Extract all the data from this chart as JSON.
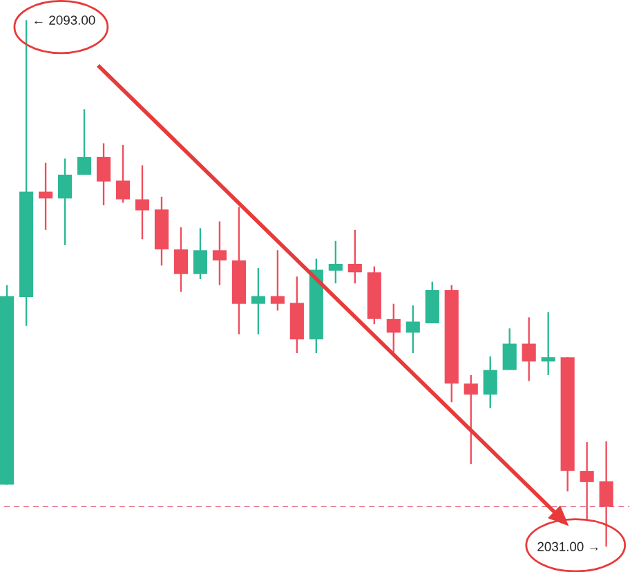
{
  "chart_data": {
    "type": "candlestick",
    "categories": [
      null,
      null,
      null,
      null,
      null,
      null,
      null,
      null,
      null,
      null,
      null,
      null,
      null,
      null,
      null,
      null,
      null,
      null,
      null,
      null,
      null,
      null,
      null,
      null,
      null,
      null,
      null,
      null,
      null,
      null,
      null,
      null
    ],
    "ohlc": [
      [
        2038.3,
        2061.8,
        2038.3,
        2060.5
      ],
      [
        2060.4,
        2093,
        2057.0,
        2072.8
      ],
      [
        2072.8,
        2076.2,
        2068.3,
        2072.0
      ],
      [
        2072.0,
        2076.7,
        2066.5,
        2074.8
      ],
      [
        2074.8,
        2082.5,
        2074.8,
        2076.9
      ],
      [
        2076.9,
        2078.5,
        2071.2,
        2074.0
      ],
      [
        2074.1,
        2078.3,
        2071.5,
        2071.9
      ],
      [
        2071.9,
        2075.9,
        2067.2,
        2070.6
      ],
      [
        2070.7,
        2072.2,
        2064.1,
        2066.0
      ],
      [
        2066.0,
        2068.6,
        2061.0,
        2063.1
      ],
      [
        2063.1,
        2068.5,
        2062.5,
        2065.9
      ],
      [
        2065.9,
        2069.3,
        2061.8,
        2064.7
      ],
      [
        2064.7,
        2071.0,
        2056.0,
        2059.6
      ],
      [
        2059.6,
        2063.8,
        2056.0,
        2060.5
      ],
      [
        2060.5,
        2065.9,
        2058.8,
        2059.6
      ],
      [
        2059.7,
        2062.8,
        2053.8,
        2055.4
      ],
      [
        2055.4,
        2064.9,
        2053.8,
        2063.6
      ],
      [
        2063.5,
        2067.0,
        2062.0,
        2064.3
      ],
      [
        2064.3,
        2068.3,
        2062.0,
        2063.3
      ],
      [
        2063.3,
        2064.0,
        2057.2,
        2057.8
      ],
      [
        2057.8,
        2059.6,
        2053.9,
        2056.2
      ],
      [
        2056.2,
        2059.4,
        2053.8,
        2057.5
      ],
      [
        2057.3,
        2062.2,
        2057.3,
        2061.2
      ],
      [
        2061.2,
        2061.8,
        2048.0,
        2050.2
      ],
      [
        2050.2,
        2051.2,
        2040.7,
        2048.9
      ],
      [
        2048.9,
        2053.4,
        2047.3,
        2051.8
      ],
      [
        2051.8,
        2056.7,
        2051.8,
        2054.9
      ],
      [
        2054.9,
        2058.0,
        2050.5,
        2052.8
      ],
      [
        2052.8,
        2058.6,
        2051.2,
        2053.3
      ],
      [
        2053.3,
        2053.3,
        2037.5,
        2039.9
      ],
      [
        2039.9,
        2043.3,
        2034.2,
        2038.6
      ],
      [
        2038.7,
        2043.4,
        2031.0,
        2035.7
      ]
    ],
    "colors": [
      "#2bb894",
      "#2bb894",
      "#ef4d5b",
      "#2bb894",
      "#2bb894",
      "#ef4d5b",
      "#ef4d5b",
      "#ef4d5b",
      "#ef4d5b",
      "#ef4d5b",
      "#2bb894",
      "#ef4d5b",
      "#ef4d5b",
      "#2bb894",
      "#ef4d5b",
      "#ef4d5b",
      "#2bb894",
      "#2bb894",
      "#ef4d5b",
      "#ef4d5b",
      "#ef4d5b",
      "#2bb894",
      "#2bb894",
      "#ef4d5b",
      "#ef4d5b",
      "#2bb894",
      "#2bb894",
      "#ef4d5b",
      "#2bb894",
      "#ef4d5b",
      "#ef4d5b",
      "#ef4d5b"
    ],
    "annotations": [
      "← 2093.00",
      "2031.00 →"
    ],
    "ref_lines": [
      {
        "axis": "y",
        "value": 2035.7,
        "color": "#e0607a",
        "line_style": "dashed"
      }
    ]
  }
}
